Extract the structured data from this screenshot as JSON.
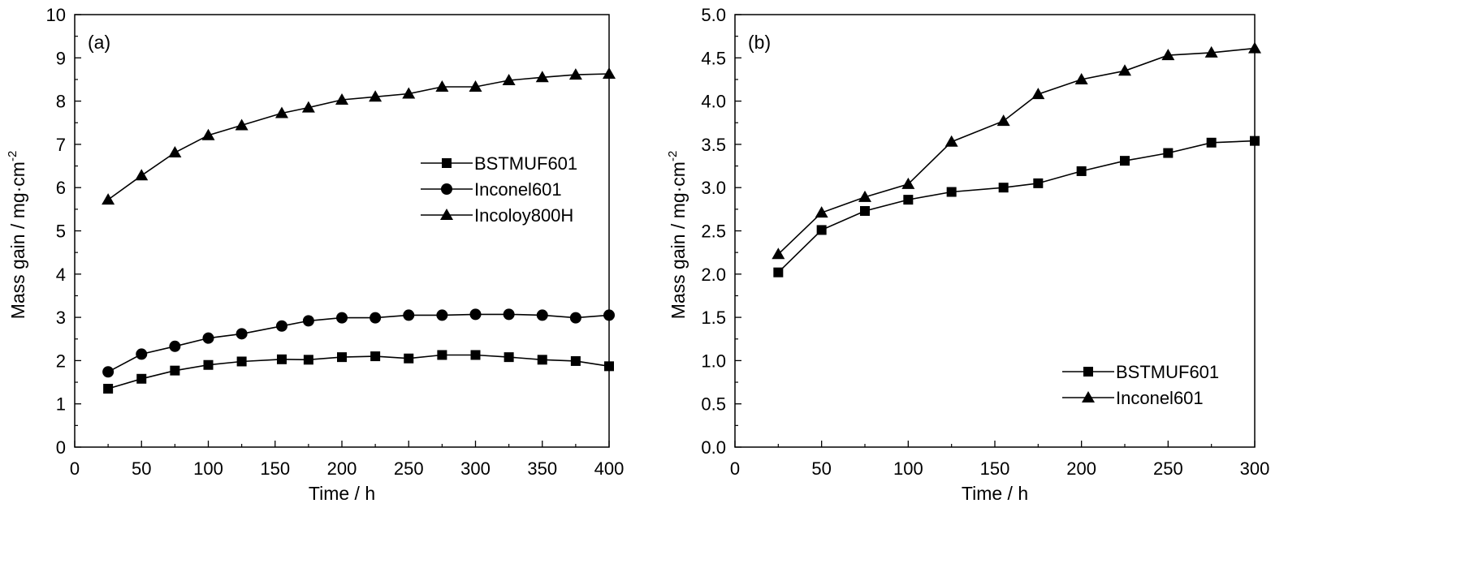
{
  "chart_data": [
    {
      "type": "line",
      "panel_label": "(a)",
      "xlabel": "Time / h",
      "ylabel": "Mass gain / mg·cm",
      "ylabel_superscript": "-2",
      "xlim": [
        0,
        400
      ],
      "ylim": [
        0,
        10
      ],
      "xticks": [
        0,
        50,
        100,
        150,
        200,
        250,
        300,
        350,
        400
      ],
      "yticks": [
        0,
        1,
        2,
        3,
        4,
        5,
        6,
        7,
        8,
        9,
        10
      ],
      "ytick_labels": [
        "0",
        "1",
        "2",
        "3",
        "4",
        "5",
        "6",
        "7",
        "8",
        "9",
        "10"
      ],
      "grid": false,
      "legend_position": "center-right",
      "series": [
        {
          "name": "BSTMUF601",
          "marker": "square",
          "x": [
            25,
            50,
            75,
            100,
            125,
            155,
            175,
            200,
            225,
            250,
            275,
            300,
            325,
            350,
            375,
            400
          ],
          "y": [
            1.35,
            1.58,
            1.77,
            1.9,
            1.98,
            2.03,
            2.02,
            2.08,
            2.1,
            2.05,
            2.13,
            2.13,
            2.08,
            2.02,
            1.99,
            1.87
          ]
        },
        {
          "name": "Inconel601",
          "marker": "circle",
          "x": [
            25,
            50,
            75,
            100,
            125,
            155,
            175,
            200,
            225,
            250,
            275,
            300,
            325,
            350,
            375,
            400
          ],
          "y": [
            1.74,
            2.15,
            2.33,
            2.52,
            2.62,
            2.8,
            2.92,
            2.99,
            2.99,
            3.05,
            3.05,
            3.07,
            3.07,
            3.05,
            2.99,
            3.05
          ]
        },
        {
          "name": "Incoloy800H",
          "marker": "triangle",
          "x": [
            25,
            50,
            75,
            100,
            125,
            155,
            175,
            200,
            225,
            250,
            275,
            300,
            325,
            350,
            375,
            400
          ],
          "y": [
            5.72,
            6.28,
            6.81,
            7.21,
            7.44,
            7.72,
            7.85,
            8.03,
            8.1,
            8.17,
            8.33,
            8.33,
            8.48,
            8.55,
            8.61,
            8.63
          ]
        }
      ]
    },
    {
      "type": "line",
      "panel_label": "(b)",
      "xlabel": "Time / h",
      "ylabel": "Mass gain / mg·cm",
      "ylabel_superscript": "-2",
      "xlim": [
        0,
        300
      ],
      "ylim": [
        0,
        5
      ],
      "xticks": [
        0,
        50,
        100,
        150,
        200,
        250,
        300
      ],
      "yticks": [
        0,
        0.5,
        1,
        1.5,
        2,
        2.5,
        3,
        3.5,
        4,
        4.5,
        5
      ],
      "ytick_labels": [
        "0.0",
        "0.5",
        "1.0",
        "1.5",
        "2.0",
        "2.5",
        "3.0",
        "3.5",
        "4.0",
        "4.5",
        "5.0"
      ],
      "grid": false,
      "legend_position": "bottom-right",
      "series": [
        {
          "name": "BSTMUF601",
          "marker": "square",
          "x": [
            25,
            50,
            75,
            100,
            125,
            155,
            175,
            200,
            225,
            250,
            275,
            300
          ],
          "y": [
            2.02,
            2.51,
            2.73,
            2.86,
            2.95,
            3.0,
            3.05,
            3.19,
            3.31,
            3.4,
            3.52,
            3.54
          ]
        },
        {
          "name": "Inconel601",
          "marker": "triangle",
          "x": [
            25,
            50,
            75,
            100,
            125,
            155,
            175,
            200,
            225,
            250,
            275,
            300
          ],
          "y": [
            2.23,
            2.71,
            2.89,
            3.04,
            3.53,
            3.77,
            4.08,
            4.25,
            4.35,
            4.53,
            4.56,
            4.61
          ]
        }
      ]
    }
  ]
}
